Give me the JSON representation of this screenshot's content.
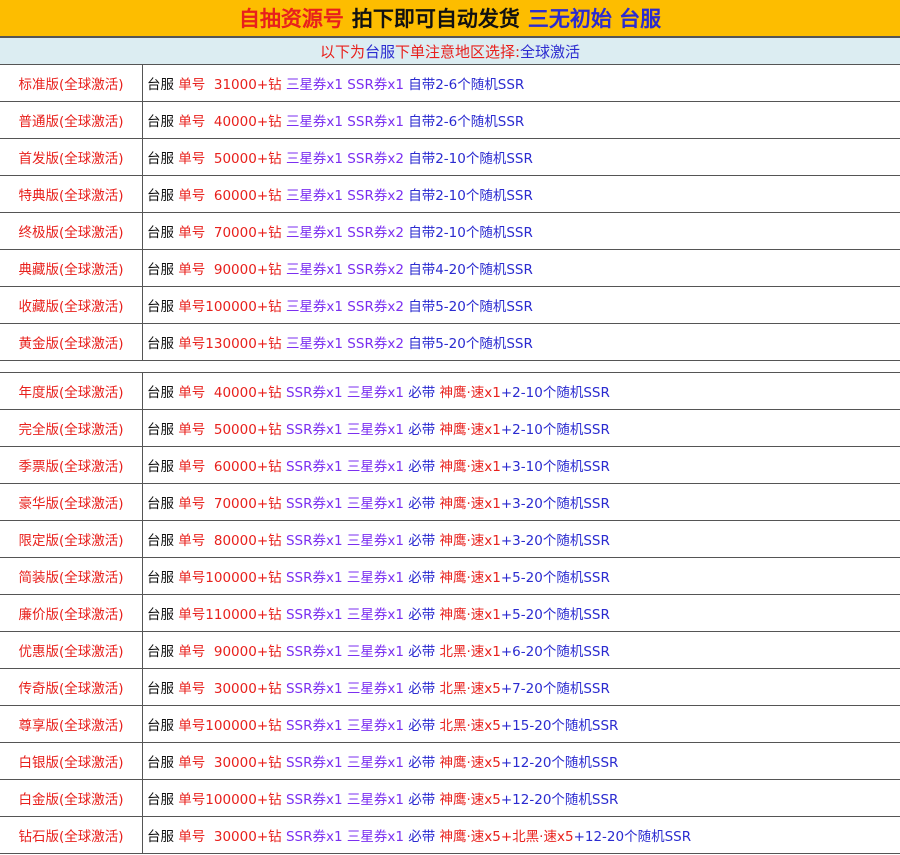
{
  "header": {
    "parts": [
      {
        "text": "自抽资源号",
        "color": "r"
      },
      {
        "text": "拍下即可自动发货",
        "color": "k"
      },
      {
        "text": "三无初始 台服",
        "color": "b"
      }
    ]
  },
  "subheader": {
    "parts": [
      {
        "text": "以下为 ",
        "color": "r"
      },
      {
        "text": "台服",
        "color": "b"
      },
      {
        "text": " 下单注意地区选择:",
        "color": "r"
      },
      {
        "text": "全球激活",
        "color": "b"
      }
    ]
  },
  "colors": {
    "r": "#e8201c",
    "p": "#7b2ff0",
    "b": "#2b2bd0",
    "k": "#111111",
    "title_bg": "#fdbd00",
    "sub_bg": "#dcedf2"
  },
  "groups": [
    [
      {
        "name": "标准版(全球激活)",
        "parts": [
          [
            "台服 ",
            "k"
          ],
          [
            "单号  31000+钻 ",
            "r"
          ],
          [
            "三星券x1 SSR券x1 ",
            "p"
          ],
          [
            "自带2-6个随机SSR",
            "b"
          ]
        ]
      },
      {
        "name": "普通版(全球激活)",
        "parts": [
          [
            "台服 ",
            "k"
          ],
          [
            "单号  40000+钻 ",
            "r"
          ],
          [
            "三星券x1 SSR券x1 ",
            "p"
          ],
          [
            "自带2-6个随机SSR",
            "b"
          ]
        ]
      },
      {
        "name": "首发版(全球激活)",
        "parts": [
          [
            "台服 ",
            "k"
          ],
          [
            "单号  50000+钻 ",
            "r"
          ],
          [
            "三星券x1 SSR券x2 ",
            "p"
          ],
          [
            "自带2-10个随机SSR",
            "b"
          ]
        ]
      },
      {
        "name": "特典版(全球激活)",
        "parts": [
          [
            "台服 ",
            "k"
          ],
          [
            "单号  60000+钻 ",
            "r"
          ],
          [
            "三星券x1 SSR券x2 ",
            "p"
          ],
          [
            "自带2-10个随机SSR",
            "b"
          ]
        ]
      },
      {
        "name": "终极版(全球激活)",
        "parts": [
          [
            "台服 ",
            "k"
          ],
          [
            "单号  70000+钻 ",
            "r"
          ],
          [
            "三星券x1 SSR券x2 ",
            "p"
          ],
          [
            "自带2-10个随机SSR",
            "b"
          ]
        ]
      },
      {
        "name": "典藏版(全球激活)",
        "parts": [
          [
            "台服 ",
            "k"
          ],
          [
            "单号  90000+钻 ",
            "r"
          ],
          [
            "三星券x1 SSR券x2 ",
            "p"
          ],
          [
            "自带4-20个随机SSR",
            "b"
          ]
        ]
      },
      {
        "name": "收藏版(全球激活)",
        "parts": [
          [
            "台服 ",
            "k"
          ],
          [
            "单号100000+钻 ",
            "r"
          ],
          [
            "三星券x1 SSR券x2 ",
            "p"
          ],
          [
            "自带5-20个随机SSR",
            "b"
          ]
        ]
      },
      {
        "name": "黄金版(全球激活)",
        "parts": [
          [
            "台服 ",
            "k"
          ],
          [
            "单号130000+钻 ",
            "r"
          ],
          [
            "三星券x1 SSR券x2 ",
            "p"
          ],
          [
            "自带5-20个随机SSR",
            "b"
          ]
        ]
      }
    ],
    [
      {
        "name": "年度版(全球激活)",
        "parts": [
          [
            "台服 ",
            "k"
          ],
          [
            "单号  40000+钻 ",
            "r"
          ],
          [
            "SSR券x1 三星券x1 ",
            "p"
          ],
          [
            "必带 ",
            "b"
          ],
          [
            "神鹰·速x1",
            "r"
          ],
          [
            "+2-10个随机SSR",
            "b"
          ]
        ]
      },
      {
        "name": "完全版(全球激活)",
        "parts": [
          [
            "台服 ",
            "k"
          ],
          [
            "单号  50000+钻 ",
            "r"
          ],
          [
            "SSR券x1 三星券x1 ",
            "p"
          ],
          [
            "必带 ",
            "b"
          ],
          [
            "神鹰·速x1",
            "r"
          ],
          [
            "+2-10个随机SSR",
            "b"
          ]
        ]
      },
      {
        "name": "季票版(全球激活)",
        "parts": [
          [
            "台服 ",
            "k"
          ],
          [
            "单号  60000+钻 ",
            "r"
          ],
          [
            "SSR券x1 三星券x1 ",
            "p"
          ],
          [
            "必带 ",
            "b"
          ],
          [
            "神鹰·速x1",
            "r"
          ],
          [
            "+3-10个随机SSR",
            "b"
          ]
        ]
      },
      {
        "name": "豪华版(全球激活)",
        "parts": [
          [
            "台服 ",
            "k"
          ],
          [
            "单号  70000+钻 ",
            "r"
          ],
          [
            "SSR券x1 三星券x1 ",
            "p"
          ],
          [
            "必带 ",
            "b"
          ],
          [
            "神鹰·速x1",
            "r"
          ],
          [
            "+3-20个随机SSR",
            "b"
          ]
        ]
      },
      {
        "name": "限定版(全球激活)",
        "parts": [
          [
            "台服 ",
            "k"
          ],
          [
            "单号  80000+钻 ",
            "r"
          ],
          [
            "SSR券x1 三星券x1 ",
            "p"
          ],
          [
            "必带 ",
            "b"
          ],
          [
            "神鹰·速x1",
            "r"
          ],
          [
            "+3-20个随机SSR",
            "b"
          ]
        ]
      },
      {
        "name": "简装版(全球激活)",
        "parts": [
          [
            "台服 ",
            "k"
          ],
          [
            "单号100000+钻 ",
            "r"
          ],
          [
            "SSR券x1 三星券x1 ",
            "p"
          ],
          [
            "必带 ",
            "b"
          ],
          [
            "神鹰·速x1",
            "r"
          ],
          [
            "+5-20个随机SSR",
            "b"
          ]
        ]
      },
      {
        "name": "廉价版(全球激活)",
        "parts": [
          [
            "台服 ",
            "k"
          ],
          [
            "单号110000+钻 ",
            "r"
          ],
          [
            "SSR券x1 三星券x1 ",
            "p"
          ],
          [
            "必带 ",
            "b"
          ],
          [
            "神鹰·速x1",
            "r"
          ],
          [
            "+5-20个随机SSR",
            "b"
          ]
        ]
      },
      {
        "name": "优惠版(全球激活)",
        "parts": [
          [
            "台服 ",
            "k"
          ],
          [
            "单号  90000+钻 ",
            "r"
          ],
          [
            "SSR券x1 三星券x1 ",
            "p"
          ],
          [
            "必带 ",
            "b"
          ],
          [
            "北黑·速x1",
            "r"
          ],
          [
            "+6-20个随机SSR",
            "b"
          ]
        ]
      },
      {
        "name": "传奇版(全球激活)",
        "parts": [
          [
            "台服 ",
            "k"
          ],
          [
            "单号  30000+钻 ",
            "r"
          ],
          [
            "SSR券x1 三星券x1 ",
            "p"
          ],
          [
            "必带 ",
            "b"
          ],
          [
            "北黑·速x5",
            "r"
          ],
          [
            "+7-20个随机SSR",
            "b"
          ]
        ]
      },
      {
        "name": "尊享版(全球激活)",
        "parts": [
          [
            "台服 ",
            "k"
          ],
          [
            "单号100000+钻 ",
            "r"
          ],
          [
            "SSR券x1 三星券x1 ",
            "p"
          ],
          [
            "必带 ",
            "b"
          ],
          [
            "北黑·速x5",
            "r"
          ],
          [
            "+15-20个随机SSR",
            "b"
          ]
        ]
      },
      {
        "name": "白银版(全球激活)",
        "parts": [
          [
            "台服 ",
            "k"
          ],
          [
            "单号  30000+钻 ",
            "r"
          ],
          [
            "SSR券x1 三星券x1 ",
            "p"
          ],
          [
            "必带 ",
            "b"
          ],
          [
            "神鹰·速x5",
            "r"
          ],
          [
            "+12-20个随机SSR",
            "b"
          ]
        ]
      },
      {
        "name": "白金版(全球激活)",
        "parts": [
          [
            "台服 ",
            "k"
          ],
          [
            "单号100000+钻 ",
            "r"
          ],
          [
            "SSR券x1 三星券x1 ",
            "p"
          ],
          [
            "必带 ",
            "b"
          ],
          [
            "神鹰·速x5",
            "r"
          ],
          [
            "+12-20个随机SSR",
            "b"
          ]
        ]
      },
      {
        "name": "钻石版(全球激活)",
        "parts": [
          [
            "台服 ",
            "k"
          ],
          [
            "单号  30000+钻 ",
            "r"
          ],
          [
            "SSR券x1 三星券x1 ",
            "p"
          ],
          [
            "必带 ",
            "b"
          ],
          [
            "神鹰·速x5+北黑·速x5",
            "r"
          ],
          [
            "+12-20个随机SSR",
            "b"
          ]
        ]
      }
    ]
  ]
}
